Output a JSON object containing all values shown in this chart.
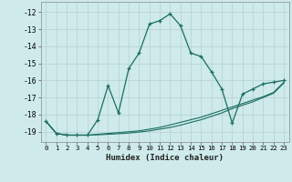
{
  "xlabel": "Humidex (Indice chaleur)",
  "background_color": "#ceeaea",
  "grid_color": "#b8d4d4",
  "line_color": "#1a6e60",
  "xlim": [
    -0.5,
    23.5
  ],
  "ylim": [
    -19.6,
    -11.4
  ],
  "xticks": [
    0,
    1,
    2,
    3,
    4,
    5,
    6,
    7,
    8,
    9,
    10,
    11,
    12,
    13,
    14,
    15,
    16,
    17,
    18,
    19,
    20,
    21,
    22,
    23
  ],
  "yticks": [
    -19,
    -18,
    -17,
    -16,
    -15,
    -14,
    -13,
    -12
  ],
  "main_x": [
    0,
    1,
    2,
    3,
    4,
    5,
    6,
    7,
    8,
    9,
    10,
    11,
    12,
    13,
    14,
    15,
    16,
    17,
    18,
    19,
    20,
    21,
    22,
    23
  ],
  "main_y": [
    -18.4,
    -19.1,
    -19.2,
    -19.2,
    -19.2,
    -18.3,
    -16.3,
    -17.9,
    -15.3,
    -14.4,
    -12.7,
    -12.5,
    -12.1,
    -12.8,
    -14.4,
    -14.6,
    -15.5,
    -16.5,
    -18.5,
    -16.8,
    -16.5,
    -16.2,
    -16.1,
    -16.0
  ],
  "line2_x": [
    0,
    1,
    2,
    3,
    4,
    5,
    6,
    7,
    8,
    9,
    10,
    11,
    12,
    13,
    14,
    15,
    16,
    17,
    18,
    19,
    20,
    21,
    22,
    23
  ],
  "line2_y": [
    -18.4,
    -19.1,
    -19.2,
    -19.2,
    -19.2,
    -19.15,
    -19.1,
    -19.05,
    -19.0,
    -18.95,
    -18.85,
    -18.75,
    -18.6,
    -18.45,
    -18.3,
    -18.15,
    -17.95,
    -17.75,
    -17.55,
    -17.35,
    -17.15,
    -16.95,
    -16.7,
    -16.1
  ],
  "line3_x": [
    0,
    1,
    2,
    3,
    4,
    5,
    6,
    7,
    8,
    9,
    10,
    11,
    12,
    13,
    14,
    15,
    16,
    17,
    18,
    19,
    20,
    21,
    22,
    23
  ],
  "line3_y": [
    -18.4,
    -19.1,
    -19.2,
    -19.2,
    -19.2,
    -19.18,
    -19.15,
    -19.12,
    -19.08,
    -19.02,
    -18.95,
    -18.85,
    -18.75,
    -18.62,
    -18.45,
    -18.3,
    -18.1,
    -17.9,
    -17.65,
    -17.45,
    -17.25,
    -17.0,
    -16.75,
    -16.15
  ]
}
